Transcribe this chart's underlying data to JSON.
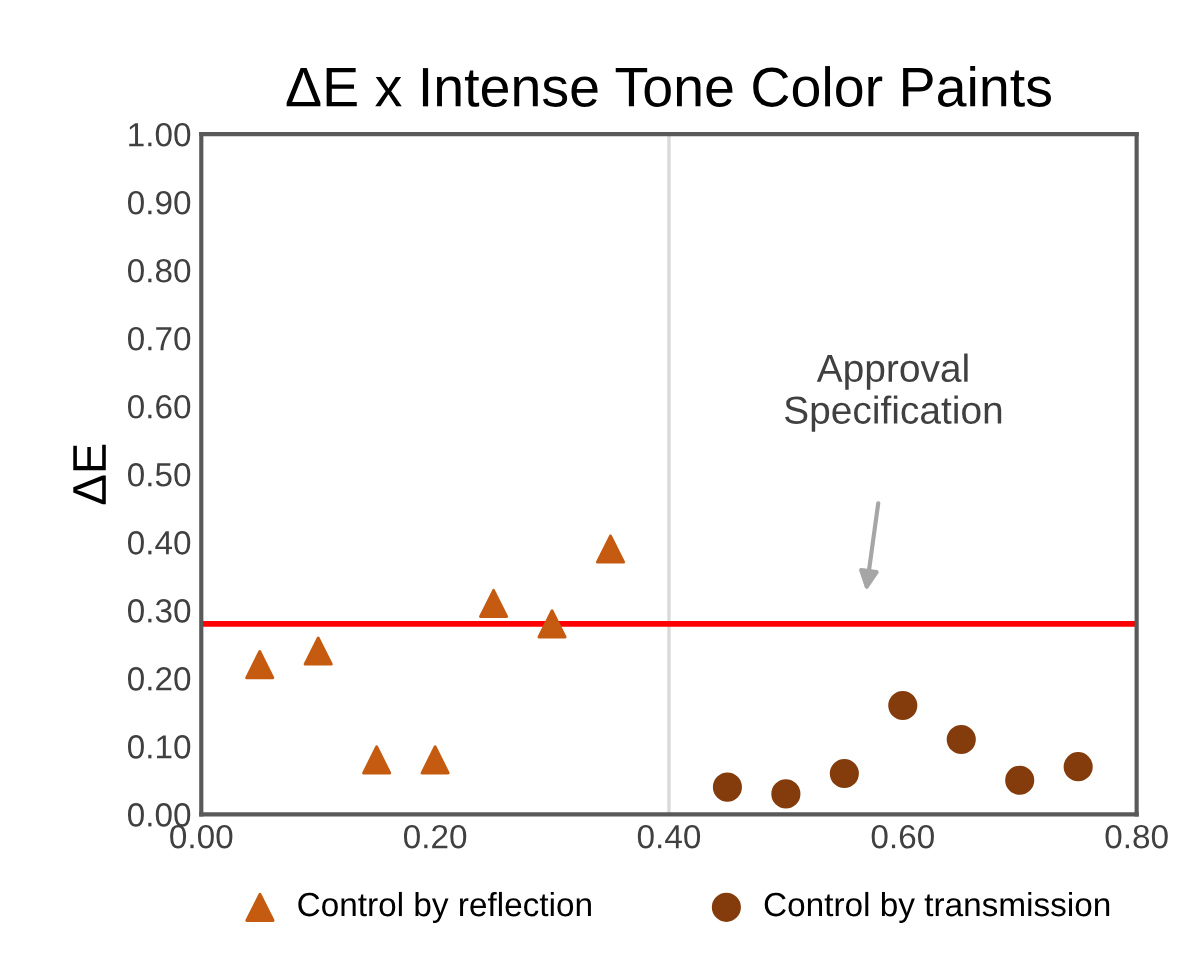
{
  "chart_data": {
    "type": "scatter",
    "title": "ΔE x Intense Tone Color Paints",
    "ylabel": "ΔE",
    "series": [
      {
        "name": "Control by reflection",
        "color": "#c55a11",
        "marker": "triangle",
        "x": [
          0.05,
          0.1,
          0.15,
          0.2,
          0.25,
          0.3,
          0.35
        ],
        "values": [
          0.22,
          0.24,
          0.08,
          0.08,
          0.31,
          0.28,
          0.39
        ]
      },
      {
        "name": "Control by transmission",
        "color": "#843c0c",
        "marker": "circle",
        "x": [
          0.45,
          0.5,
          0.55,
          0.6,
          0.65,
          0.7,
          0.75
        ],
        "values": [
          0.04,
          0.03,
          0.06,
          0.16,
          0.11,
          0.05,
          0.07
        ]
      }
    ],
    "xlim": [
      0,
      0.8
    ],
    "xticks": [
      {
        "value": 0,
        "label": "0.00"
      },
      {
        "value": 0.2,
        "label": "0.20"
      },
      {
        "value": 0.4,
        "label": "0.40"
      },
      {
        "value": 0.6,
        "label": "0.60"
      },
      {
        "value": 0.8,
        "label": "0.80"
      }
    ],
    "ylim": [
      0,
      1
    ],
    "yticks": [
      {
        "value": 0,
        "label": "0.00"
      },
      {
        "value": 0.1,
        "label": "0.10"
      },
      {
        "value": 0.2,
        "label": "0.20"
      },
      {
        "value": 0.3,
        "label": "0.30"
      },
      {
        "value": 0.4,
        "label": "0.40"
      },
      {
        "value": 0.5,
        "label": "0.50"
      },
      {
        "value": 0.6,
        "label": "0.60"
      },
      {
        "value": 0.7,
        "label": "0.70"
      },
      {
        "value": 0.8,
        "label": "0.80"
      },
      {
        "value": 0.9,
        "label": "0.90"
      },
      {
        "value": 1,
        "label": "1.00"
      }
    ],
    "ref_lines": [
      {
        "axis": "y",
        "value": 0.28,
        "color": "#ff0000"
      },
      {
        "axis": "x",
        "value": 0.4,
        "color": "#d9d9d9"
      }
    ],
    "annotations": [
      "Approval\nSpecification"
    ],
    "grid": false,
    "legend": "bottom"
  }
}
